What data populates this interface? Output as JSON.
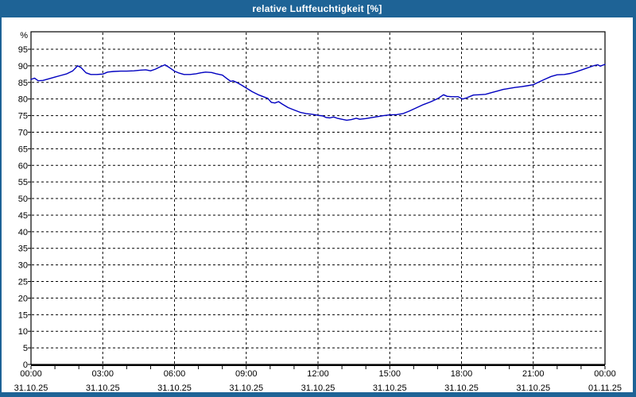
{
  "window": {
    "title": "relative Luftfeuchtigkeit [%]"
  },
  "colors": {
    "titlebar_bg": "#1e6396",
    "titlebar_text": "#ffffff",
    "window_border": "#1e6396",
    "plot_bg": "#ffffff",
    "grid": "#000000",
    "axis": "#000000",
    "text": "#000000",
    "series_line": "#0000c0"
  },
  "chart_data": {
    "type": "line",
    "title": "relative Luftfeuchtigkeit [%]",
    "y_unit": "%",
    "ylim": [
      0,
      100
    ],
    "yticks": [
      95,
      90,
      85,
      80,
      75,
      70,
      65,
      60,
      55,
      50,
      45,
      40,
      35,
      30,
      25,
      20,
      15,
      10,
      5,
      0
    ],
    "grid": true,
    "legend": "none",
    "x_hours_range": [
      0,
      24
    ],
    "minor_tick_hours": 1,
    "xticks": [
      {
        "time": "00:00",
        "date": "31.10.25"
      },
      {
        "time": "03:00",
        "date": "31.10.25"
      },
      {
        "time": "06:00",
        "date": "31.10.25"
      },
      {
        "time": "09:00",
        "date": "31.10.25"
      },
      {
        "time": "12:00",
        "date": "31.10.25"
      },
      {
        "time": "15:00",
        "date": "31.10.25"
      },
      {
        "time": "18:00",
        "date": "31.10.25"
      },
      {
        "time": "21:00",
        "date": "31.10.25"
      },
      {
        "time": "00:00",
        "date": "01.11.25"
      }
    ],
    "series": [
      {
        "name": "relative Luftfeuchtigkeit",
        "unit": "%",
        "points": [
          [
            0,
            85.9
          ],
          [
            0.15,
            86.3
          ],
          [
            0.3,
            85.5
          ],
          [
            0.5,
            85.6
          ],
          [
            0.75,
            86.1
          ],
          [
            1,
            86.6
          ],
          [
            1.25,
            87.1
          ],
          [
            1.5,
            87.6
          ],
          [
            1.75,
            88.5
          ],
          [
            1.95,
            90
          ],
          [
            2.1,
            89.4
          ],
          [
            2.3,
            87.9
          ],
          [
            2.5,
            87.4
          ],
          [
            2.75,
            87.4
          ],
          [
            3,
            87.5
          ],
          [
            3.2,
            88.1
          ],
          [
            3.45,
            88.3
          ],
          [
            3.75,
            88.4
          ],
          [
            4,
            88.4
          ],
          [
            4.3,
            88.5
          ],
          [
            4.6,
            88.7
          ],
          [
            4.8,
            88.8
          ],
          [
            5,
            88.5
          ],
          [
            5.2,
            89
          ],
          [
            5.4,
            89.7
          ],
          [
            5.6,
            90.3
          ],
          [
            5.8,
            89.4
          ],
          [
            6,
            88.4
          ],
          [
            6.2,
            87.8
          ],
          [
            6.4,
            87.4
          ],
          [
            6.65,
            87.4
          ],
          [
            6.9,
            87.6
          ],
          [
            7.1,
            87.9
          ],
          [
            7.3,
            88.1
          ],
          [
            7.55,
            88
          ],
          [
            7.75,
            87.6
          ],
          [
            8,
            87.2
          ],
          [
            8.2,
            86.1
          ],
          [
            8.35,
            85.3
          ],
          [
            8.45,
            85.5
          ],
          [
            8.6,
            85
          ],
          [
            8.8,
            84.2
          ],
          [
            9,
            83.3
          ],
          [
            9.25,
            82.2
          ],
          [
            9.5,
            81.3
          ],
          [
            9.75,
            80.6
          ],
          [
            9.9,
            80.2
          ],
          [
            10.05,
            79
          ],
          [
            10.2,
            78.8
          ],
          [
            10.35,
            79.2
          ],
          [
            10.5,
            78.5
          ],
          [
            10.75,
            77.4
          ],
          [
            11,
            76.7
          ],
          [
            11.25,
            76
          ],
          [
            11.5,
            75.6
          ],
          [
            11.75,
            75.4
          ],
          [
            12,
            75.1
          ],
          [
            12.2,
            74.9
          ],
          [
            12.35,
            74.4
          ],
          [
            12.5,
            74.3
          ],
          [
            12.65,
            74.6
          ],
          [
            12.8,
            74.2
          ],
          [
            13,
            73.9
          ],
          [
            13.2,
            73.6
          ],
          [
            13.4,
            73.8
          ],
          [
            13.6,
            74.2
          ],
          [
            13.75,
            73.9
          ],
          [
            14,
            74.1
          ],
          [
            14.25,
            74.4
          ],
          [
            14.5,
            74.7
          ],
          [
            14.75,
            75
          ],
          [
            15,
            75.2
          ],
          [
            15.3,
            75.3
          ],
          [
            15.55,
            75.6
          ],
          [
            15.8,
            76.3
          ],
          [
            16.1,
            77.3
          ],
          [
            16.4,
            78.3
          ],
          [
            16.7,
            79.1
          ],
          [
            17,
            80.1
          ],
          [
            17.25,
            81.3
          ],
          [
            17.4,
            80.8
          ],
          [
            17.6,
            80.7
          ],
          [
            17.85,
            80.7
          ],
          [
            18.05,
            80
          ],
          [
            18.2,
            80.3
          ],
          [
            18.5,
            81.2
          ],
          [
            18.75,
            81.3
          ],
          [
            19,
            81.4
          ],
          [
            19.25,
            81.9
          ],
          [
            19.5,
            82.4
          ],
          [
            19.75,
            82.9
          ],
          [
            20,
            83.2
          ],
          [
            20.25,
            83.5
          ],
          [
            20.5,
            83.7
          ],
          [
            20.75,
            84
          ],
          [
            21,
            84.3
          ],
          [
            21.2,
            85
          ],
          [
            21.5,
            86
          ],
          [
            21.75,
            86.8
          ],
          [
            22,
            87.3
          ],
          [
            22.3,
            87.4
          ],
          [
            22.55,
            87.7
          ],
          [
            22.75,
            88.1
          ],
          [
            23,
            88.7
          ],
          [
            23.2,
            89.2
          ],
          [
            23.4,
            89.7
          ],
          [
            23.55,
            90.1
          ],
          [
            23.7,
            90.3
          ],
          [
            23.8,
            89.9
          ],
          [
            23.95,
            90.3
          ],
          [
            24,
            90.4
          ]
        ]
      }
    ]
  }
}
